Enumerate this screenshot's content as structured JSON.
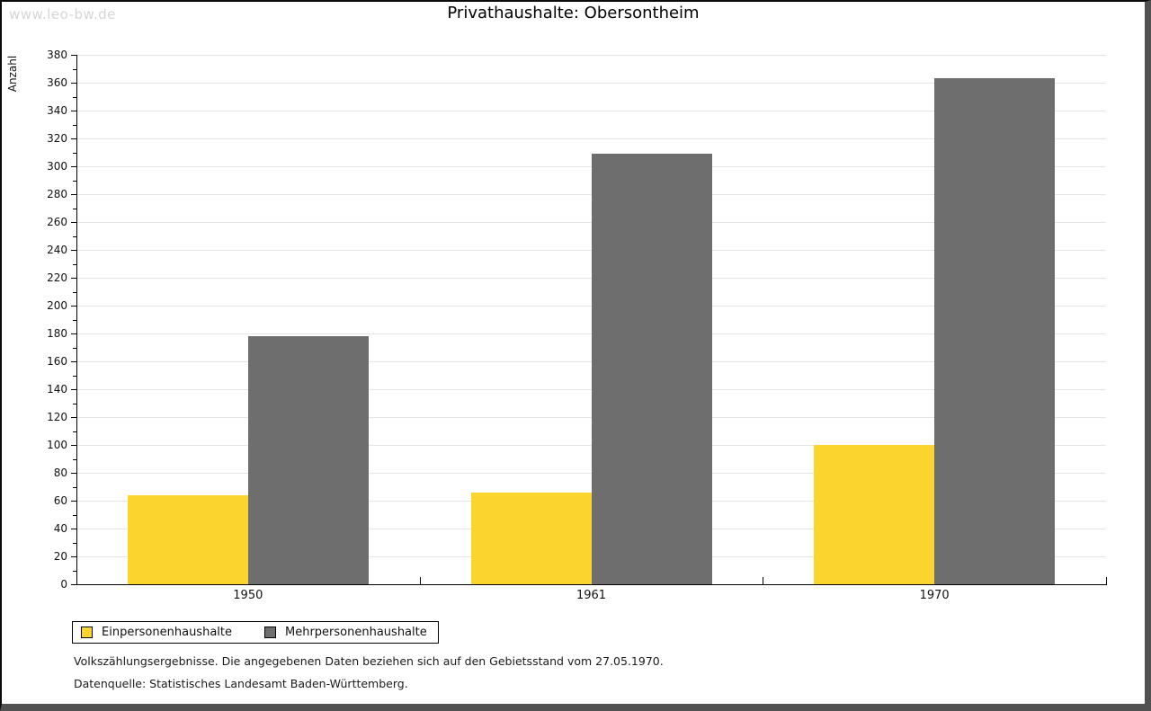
{
  "watermark": "www.leo-bw.de",
  "title": "Privathaushalte: Obersontheim",
  "chart_data": {
    "type": "bar",
    "title": "Privathaushalte: Obersontheim",
    "ylabel": "Anzahl",
    "xlabel": "",
    "categories": [
      "1950",
      "1961",
      "1970"
    ],
    "series": [
      {
        "name": "Einpersonenhaushalte",
        "color": "#FCD42E",
        "values": [
          64,
          66,
          100
        ]
      },
      {
        "name": "Mehrpersonenhaushalte",
        "color": "#6E6E6E",
        "values": [
          178,
          309,
          363
        ]
      }
    ],
    "ylim": [
      0,
      380
    ],
    "ytick_step": 20,
    "minor_tick_step": 10,
    "grid": true,
    "legend_position": "bottom-left"
  },
  "footnotes": {
    "line1": "Volkszählungsergebnisse. Die angegebenen Daten beziehen sich auf den Gebietsstand vom 27.05.1970.",
    "line2": "Datenquelle: Statistisches Landesamt Baden-Württemberg."
  }
}
